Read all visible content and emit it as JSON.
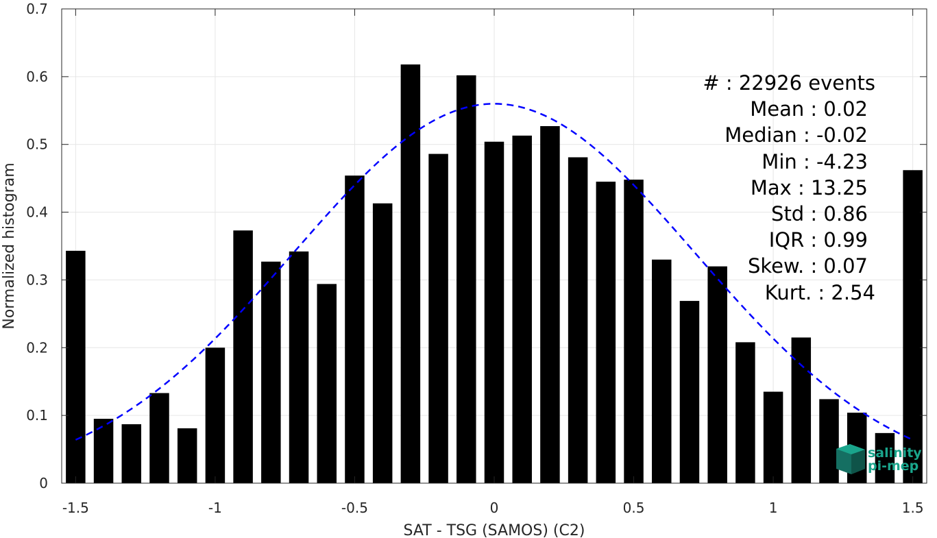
{
  "chart_data": {
    "type": "bar",
    "xlabel": "SAT - TSG (SAMOS) (C2)",
    "ylabel": "Normalized histogram",
    "xlim": [
      -1.55,
      1.55
    ],
    "ylim": [
      0,
      0.7
    ],
    "xticks": [
      -1.5,
      -1,
      -0.5,
      0,
      0.5,
      1,
      1.5
    ],
    "xtick_labels": [
      "-1.5",
      "-1",
      "-0.5",
      "0",
      "0.5",
      "1",
      "1.5"
    ],
    "yticks": [
      0,
      0.1,
      0.2,
      0.3,
      0.4,
      0.5,
      0.6,
      0.7
    ],
    "ytick_labels": [
      "0",
      "0.1",
      "0.2",
      "0.3",
      "0.4",
      "0.5",
      "0.6",
      "0.7"
    ],
    "grid": true,
    "bar_width": 0.07,
    "x": [
      -1.5,
      -1.4,
      -1.3,
      -1.2,
      -1.1,
      -1.0,
      -0.9,
      -0.8,
      -0.7,
      -0.6,
      -0.5,
      -0.4,
      -0.3,
      -0.2,
      -0.1,
      0.0,
      0.1,
      0.2,
      0.3,
      0.4,
      0.5,
      0.6,
      0.7,
      0.8,
      0.9,
      1.0,
      1.1,
      1.2,
      1.3,
      1.4,
      1.5
    ],
    "values": [
      0.343,
      0.095,
      0.087,
      0.133,
      0.081,
      0.2,
      0.373,
      0.327,
      0.342,
      0.294,
      0.454,
      0.413,
      0.618,
      0.486,
      0.602,
      0.504,
      0.513,
      0.527,
      0.481,
      0.445,
      0.448,
      0.33,
      0.269,
      0.32,
      0.208,
      0.135,
      0.215,
      0.124,
      0.104,
      0.074,
      0.462
    ],
    "bar_color": "#000000",
    "fit_curve": {
      "style": "dashed",
      "color": "#0000ff",
      "mean": 0.0,
      "std": 0.72,
      "peak": 0.56,
      "x_range": [
        -1.5,
        1.5
      ]
    },
    "stats": [
      {
        "text": "#  : 22926 events"
      },
      {
        "text": "Mean : 0.02"
      },
      {
        "text": "Median : -0.02"
      },
      {
        "text": "Min : -4.23"
      },
      {
        "text": "Max : 13.25"
      },
      {
        "text": "Std : 0.86"
      },
      {
        "text": "IQR : 0.99"
      },
      {
        "text": "Skew. : 0.07"
      },
      {
        "text": "Kurt. : 2.54"
      }
    ]
  },
  "logo": {
    "line1": "salinity",
    "line2": "pi-mep",
    "color": "#1aa58c"
  }
}
